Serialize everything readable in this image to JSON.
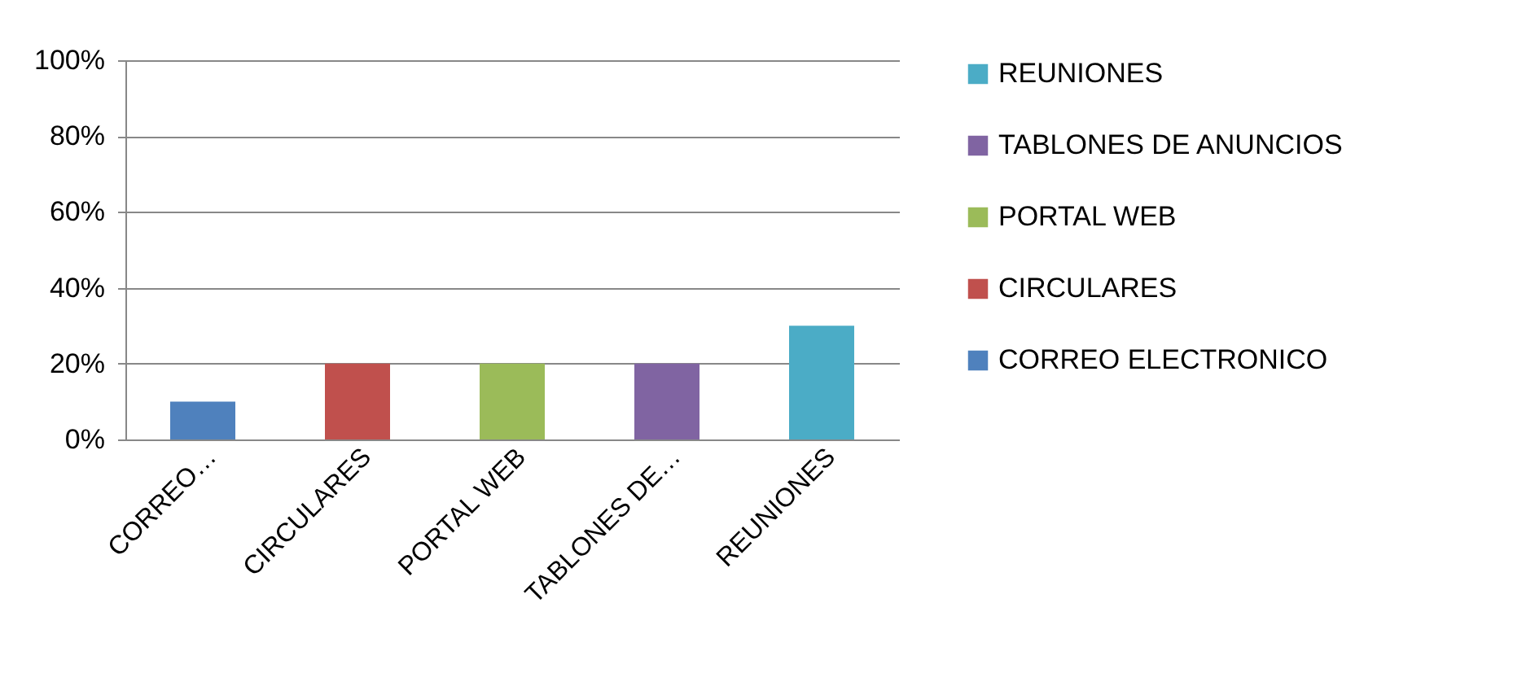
{
  "chart_data": {
    "type": "bar",
    "categories": [
      "CORREO…",
      "CIRCULARES",
      "PORTAL WEB",
      "TABLONES DE…",
      "REUNIONES"
    ],
    "series": [
      {
        "name": "REUNIONES",
        "color": "#4bacc6",
        "values": [
          null,
          null,
          null,
          null,
          30
        ]
      },
      {
        "name": "TABLONES DE ANUNCIOS",
        "color": "#8064a2",
        "values": [
          null,
          null,
          null,
          20,
          null
        ]
      },
      {
        "name": "PORTAL WEB",
        "color": "#9bbb59",
        "values": [
          null,
          null,
          20,
          null,
          null
        ]
      },
      {
        "name": "CIRCULARES",
        "color": "#c0504d",
        "values": [
          null,
          20,
          null,
          null,
          null
        ]
      },
      {
        "name": "CORREO ELECTRONICO",
        "color": "#4f81bd",
        "values": [
          10,
          null,
          null,
          null,
          null
        ]
      }
    ],
    "ylim": [
      0,
      100
    ],
    "yticks": [
      {
        "value": 0,
        "label": "0%"
      },
      {
        "value": 20,
        "label": "20%"
      },
      {
        "value": 40,
        "label": "40%"
      },
      {
        "value": 60,
        "label": "60%"
      },
      {
        "value": 80,
        "label": "80%"
      },
      {
        "value": 100,
        "label": "100%"
      }
    ],
    "grid": "y",
    "legend": "right"
  }
}
